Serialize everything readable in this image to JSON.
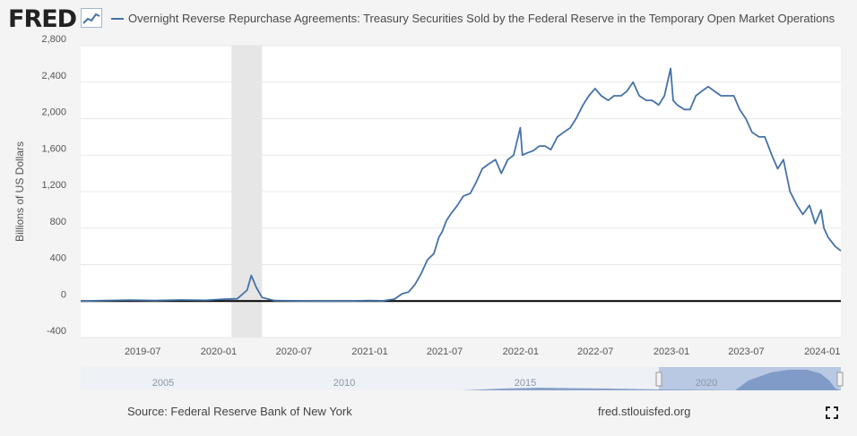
{
  "header": {
    "logo_text": "FRED",
    "logo_icon": "sparkline-chart-icon",
    "series_title": "Overnight Reverse Repurchase Agreements: Treasury Securities Sold by the Federal Reserve in the Temporary Open Market Operations"
  },
  "footer": {
    "source": "Source: Federal Reserve Bank of New York",
    "link": "fred.stlouisfed.org",
    "fullscreen_icon": "expand-icon"
  },
  "navigator": {
    "tick_labels": [
      "2005",
      "2010",
      "2015",
      "2020"
    ]
  },
  "colors": {
    "series": "#4572a7",
    "recession_shade": "#e6e6e6",
    "zero_line": "#000000",
    "plot_bg": "#ffffff",
    "page_bg": "#f4f4f4"
  },
  "chart_data": {
    "type": "line",
    "title": "Overnight Reverse Repurchase Agreements: Treasury Securities Sold by the Federal Reserve in the Temporary Open Market Operations",
    "ylabel": "Billions of US Dollars",
    "xlabel": "",
    "ylim": [
      -400,
      2800
    ],
    "yticks": [
      -400,
      0,
      400,
      800,
      1200,
      1600,
      2000,
      2400,
      2800
    ],
    "ytick_labels": [
      "-400",
      "0",
      "400",
      "800",
      "1,200",
      "1,600",
      "2,000",
      "2,400",
      "2,800"
    ],
    "xlim": [
      "2019-02-01",
      "2024-02-15"
    ],
    "xticks": [
      "2019-07-01",
      "2020-01-01",
      "2020-07-01",
      "2021-01-01",
      "2021-07-01",
      "2022-01-01",
      "2022-07-01",
      "2023-01-01",
      "2023-07-01",
      "2024-01-01"
    ],
    "xtick_labels": [
      "2019-07",
      "2020-01",
      "2020-07",
      "2021-01",
      "2021-07",
      "2022-01",
      "2022-07",
      "2023-01",
      "2023-07",
      "2024-01"
    ],
    "recession": [
      "2020-02-01",
      "2020-04-15"
    ],
    "grid": true,
    "legend": "top",
    "series": [
      {
        "name": "Overnight Reverse Repurchase Agreements: Treasury Securities Sold by the Federal Reserve in the Temporary Open Market Operations",
        "x": [
          "2019-02-01",
          "2019-04-01",
          "2019-06-01",
          "2019-08-01",
          "2019-10-01",
          "2019-12-01",
          "2020-01-15",
          "2020-02-15",
          "2020-03-10",
          "2020-03-20",
          "2020-04-01",
          "2020-04-15",
          "2020-05-15",
          "2020-07-01",
          "2020-09-01",
          "2020-11-01",
          "2021-01-01",
          "2021-02-01",
          "2021-03-01",
          "2021-03-20",
          "2021-04-05",
          "2021-04-20",
          "2021-05-05",
          "2021-05-20",
          "2021-06-05",
          "2021-06-17",
          "2021-06-25",
          "2021-07-05",
          "2021-07-15",
          "2021-08-01",
          "2021-08-15",
          "2021-09-01",
          "2021-09-15",
          "2021-09-30",
          "2021-10-15",
          "2021-11-01",
          "2021-11-15",
          "2021-12-01",
          "2021-12-15",
          "2021-12-31",
          "2022-01-05",
          "2022-01-15",
          "2022-02-01",
          "2022-02-15",
          "2022-03-01",
          "2022-03-15",
          "2022-03-31",
          "2022-04-15",
          "2022-05-01",
          "2022-05-15",
          "2022-06-01",
          "2022-06-15",
          "2022-06-30",
          "2022-07-15",
          "2022-08-01",
          "2022-08-15",
          "2022-09-01",
          "2022-09-15",
          "2022-09-30",
          "2022-10-15",
          "2022-11-01",
          "2022-11-15",
          "2022-12-01",
          "2022-12-15",
          "2022-12-30",
          "2023-01-05",
          "2023-01-15",
          "2023-02-01",
          "2023-02-15",
          "2023-03-01",
          "2023-03-15",
          "2023-03-31",
          "2023-04-15",
          "2023-05-01",
          "2023-05-15",
          "2023-06-01",
          "2023-06-15",
          "2023-06-30",
          "2023-07-15",
          "2023-08-01",
          "2023-08-15",
          "2023-09-01",
          "2023-09-15",
          "2023-09-29",
          "2023-10-15",
          "2023-11-01",
          "2023-11-15",
          "2023-12-01",
          "2023-12-15",
          "2023-12-29",
          "2024-01-05",
          "2024-01-15",
          "2024-02-01",
          "2024-02-15"
        ],
        "y": [
          0,
          5,
          10,
          5,
          12,
          8,
          20,
          25,
          120,
          280,
          150,
          40,
          5,
          2,
          0,
          0,
          5,
          2,
          20,
          80,
          100,
          180,
          300,
          450,
          520,
          700,
          760,
          880,
          950,
          1050,
          1150,
          1180,
          1300,
          1450,
          1500,
          1550,
          1400,
          1550,
          1600,
          1900,
          1600,
          1620,
          1650,
          1700,
          1700,
          1660,
          1800,
          1850,
          1900,
          2000,
          2150,
          2250,
          2330,
          2250,
          2200,
          2250,
          2250,
          2300,
          2400,
          2250,
          2200,
          2200,
          2150,
          2250,
          2550,
          2200,
          2150,
          2100,
          2100,
          2250,
          2300,
          2350,
          2300,
          2250,
          2250,
          2250,
          2100,
          2000,
          1850,
          1800,
          1800,
          1600,
          1450,
          1550,
          1200,
          1050,
          950,
          1050,
          850,
          1000,
          800,
          700,
          600,
          550
        ]
      }
    ]
  }
}
